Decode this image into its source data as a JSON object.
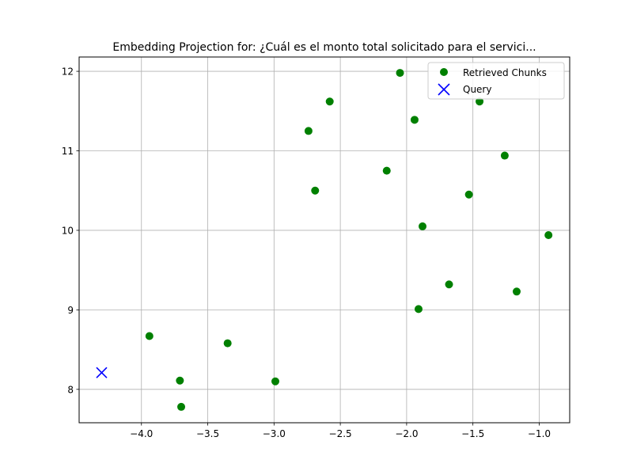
{
  "chart_data": {
    "type": "scatter",
    "title": "Embedding Projection for: ¿Cuál es el monto total solicitado para el servici...",
    "xlabel": "",
    "ylabel": "",
    "xlim": [
      -4.47,
      -0.77
    ],
    "ylim": [
      7.58,
      12.18
    ],
    "xticks": [
      -4.0,
      -3.5,
      -3.0,
      -2.5,
      -2.0,
      -1.5,
      -1.0
    ],
    "xtick_labels": [
      "−4.0",
      "−3.5",
      "−3.0",
      "−2.5",
      "−2.0",
      "−1.5",
      "−1.0"
    ],
    "yticks": [
      8,
      9,
      10,
      11,
      12
    ],
    "ytick_labels": [
      "8",
      "9",
      "10",
      "11",
      "12"
    ],
    "grid": true,
    "legend_position": "top-right",
    "series": [
      {
        "name": "Retrieved Chunks",
        "marker": "circle",
        "color": "#008000",
        "points": [
          [
            -2.05,
            11.98
          ],
          [
            -2.58,
            11.62
          ],
          [
            -1.45,
            11.62
          ],
          [
            -1.94,
            11.39
          ],
          [
            -2.74,
            11.25
          ],
          [
            -1.26,
            10.94
          ],
          [
            -2.15,
            10.75
          ],
          [
            -2.69,
            10.5
          ],
          [
            -1.53,
            10.45
          ],
          [
            -1.88,
            10.05
          ],
          [
            -0.93,
            9.94
          ],
          [
            -1.68,
            9.32
          ],
          [
            -1.17,
            9.23
          ],
          [
            -1.91,
            9.01
          ],
          [
            -3.94,
            8.67
          ],
          [
            -3.35,
            8.58
          ],
          [
            -3.71,
            8.11
          ],
          [
            -2.99,
            8.1
          ],
          [
            -3.7,
            7.78
          ]
        ]
      },
      {
        "name": "Query",
        "marker": "x",
        "color": "#0000ff",
        "points": [
          [
            -4.3,
            8.21
          ]
        ]
      }
    ]
  }
}
